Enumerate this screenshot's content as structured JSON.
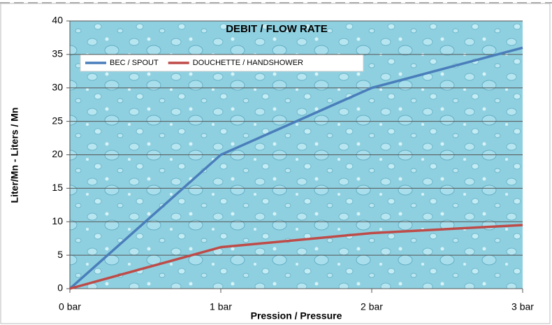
{
  "chart_data": {
    "type": "line",
    "title": "DEBIT / FLOW RATE",
    "x_label": "Pression / Pressure",
    "y_label": "Liter/Mn - Liters / Mn",
    "categories": [
      "0 bar",
      "1 bar",
      "2 bar",
      "3 bar"
    ],
    "series": [
      {
        "name": "BEC / SPOUT",
        "color": "#4a7ebb",
        "values": [
          0,
          20,
          30,
          36
        ]
      },
      {
        "name": "DOUCHETTE / HANDSHOWER",
        "color": "#be4b48",
        "values": [
          0,
          6.2,
          8.3,
          9.5
        ]
      }
    ],
    "ylim": [
      0,
      40
    ],
    "yticks": [
      0,
      5,
      10,
      15,
      20,
      25,
      30,
      35,
      40
    ],
    "grid": true
  }
}
